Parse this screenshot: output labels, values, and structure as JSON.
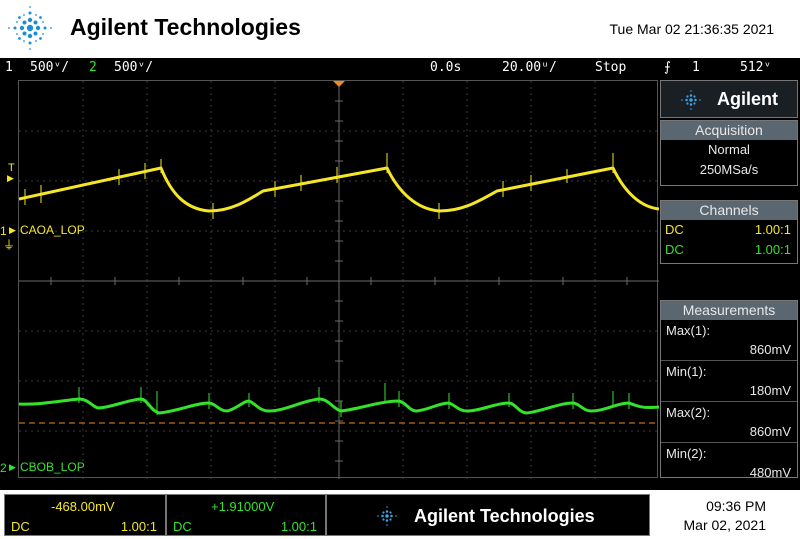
{
  "header": {
    "brand": "Agilent Technologies",
    "datetime": "Tue Mar 02 21:36:35 2021"
  },
  "status": {
    "ch1_num": "1",
    "ch1_scale": "500ᵛ/",
    "ch2_num": "2",
    "ch2_scale": "500ᵛ/",
    "time_delay": "0.0s",
    "time_scale": "20.00ᵘ/",
    "run_state": "Stop",
    "trigger_icon": "edge-trigger-icon",
    "trigger_source": "1",
    "trigger_level": "512ᵛ"
  },
  "channels_on_screen": {
    "ch1_marker": "1",
    "ch1_name": "CAOA_LOP",
    "ch2_marker": "2",
    "ch2_name": "CBOB_LOP",
    "trigger_marker": "T"
  },
  "side": {
    "brand": "Agilent",
    "acquisition": {
      "title": "Acquisition",
      "mode": "Normal",
      "rate": "250MSa/s"
    },
    "channels": {
      "title": "Channels",
      "rows": [
        {
          "coupling": "DC",
          "probe": "1.00:1",
          "color": "#f5e626"
        },
        {
          "coupling": "DC",
          "probe": "1.00:1",
          "color": "#35e22b"
        }
      ]
    },
    "measurements": {
      "title": "Measurements",
      "items": [
        {
          "label": "Max(1):",
          "value": "860mV"
        },
        {
          "label": "Min(1):",
          "value": "180mV"
        },
        {
          "label": "Max(2):",
          "value": "860mV"
        },
        {
          "label": "Min(2):",
          "value": "480mV"
        }
      ]
    }
  },
  "bottom": {
    "ch1_offset": "-468.00mV",
    "ch1_coupling": "DC",
    "ch1_probe": "1.00:1",
    "ch2_offset": "+1.91000V",
    "ch2_coupling": "DC",
    "ch2_probe": "1.00:1",
    "brand": "Agilent Technologies",
    "time": "09:36 PM",
    "date": "Mar 02, 2021"
  },
  "colors": {
    "ch1": "#f5e626",
    "ch2": "#35e22b",
    "trigger": "#f08a1c",
    "panel_header": "#5a6670"
  }
}
